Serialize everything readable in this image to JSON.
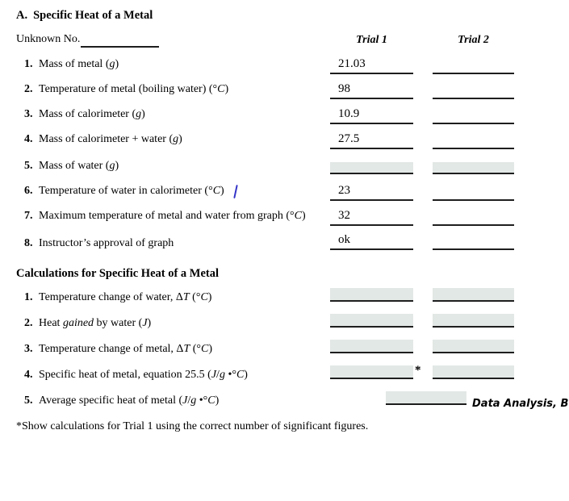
{
  "header": {
    "section_letter": "A.",
    "section_title": "Specific Heat of a Metal",
    "unknown_label": "Unknown No.",
    "trial1": "Trial 1",
    "trial2": "Trial 2"
  },
  "section_a": {
    "rows": [
      {
        "num": "1.",
        "label_parts": [
          {
            "t": "Mass of metal ("
          },
          {
            "t": "g",
            "i": 1
          },
          {
            "t": ")"
          }
        ],
        "trial1": "21.03",
        "trial2": "",
        "field": "line"
      },
      {
        "num": "2.",
        "label_parts": [
          {
            "t": "Temperature of metal (boiling water) (°"
          },
          {
            "t": "C",
            "i": 1
          },
          {
            "t": ")"
          }
        ],
        "trial1": "98",
        "trial2": "",
        "field": "line"
      },
      {
        "num": "3.",
        "label_parts": [
          {
            "t": "Mass of calorimeter ("
          },
          {
            "t": "g",
            "i": 1
          },
          {
            "t": ")"
          }
        ],
        "trial1": "10.9",
        "trial2": "",
        "field": "line"
      },
      {
        "num": "4.",
        "label_parts": [
          {
            "t": "Mass of calorimeter + water ("
          },
          {
            "t": "g",
            "i": 1
          },
          {
            "t": ")"
          }
        ],
        "trial1": "27.5",
        "trial2": "",
        "field": "line"
      },
      {
        "num": "5.",
        "label_parts": [
          {
            "t": "Mass of water ("
          },
          {
            "t": "g",
            "i": 1
          },
          {
            "t": ")"
          }
        ],
        "trial1": "",
        "trial2": "",
        "field": "box"
      },
      {
        "num": "6.",
        "label_parts": [
          {
            "t": "Temperature of water in calorimeter (°"
          },
          {
            "t": "C",
            "i": 1
          },
          {
            "t": ")"
          }
        ],
        "trial1": "23",
        "trial2": "",
        "field": "line",
        "pen_mark": true
      },
      {
        "num": "7.",
        "label_parts": [
          {
            "t": "Maximum temperature of metal and water from graph (°"
          },
          {
            "t": "C",
            "i": 1
          },
          {
            "t": ")"
          }
        ],
        "trial1": "32",
        "trial2": "",
        "field": "line"
      },
      {
        "num": "8.",
        "label_parts": [
          {
            "t": "Instructor’s approval of graph"
          }
        ],
        "trial1": "ok",
        "trial2": "",
        "field": "line"
      }
    ]
  },
  "calc": {
    "title": "Calculations for Specific Heat of a Metal",
    "asterisk": "*",
    "annotation": "Data Analysis, B",
    "rows": [
      {
        "num": "1.",
        "label_parts": [
          {
            "t": "Temperature change of water, Δ"
          },
          {
            "t": "T",
            "i": 1
          },
          {
            "t": " (°"
          },
          {
            "t": "C",
            "i": 1
          },
          {
            "t": ")"
          }
        ],
        "trial1": "",
        "trial2": "",
        "field": "box"
      },
      {
        "num": "2.",
        "label_parts": [
          {
            "t": "Heat "
          },
          {
            "t": "gained",
            "i": 1
          },
          {
            "t": " by water ("
          },
          {
            "t": "J",
            "i": 1
          },
          {
            "t": ")"
          }
        ],
        "trial1": "",
        "trial2": "",
        "field": "box"
      },
      {
        "num": "3.",
        "label_parts": [
          {
            "t": "Temperature change of metal, Δ"
          },
          {
            "t": "T",
            "i": 1
          },
          {
            "t": " (°"
          },
          {
            "t": "C",
            "i": 1
          },
          {
            "t": ")"
          }
        ],
        "trial1": "",
        "trial2": "",
        "field": "box"
      },
      {
        "num": "4.",
        "label_parts": [
          {
            "t": "Specific heat of metal, equation 25.5 ("
          },
          {
            "t": "J",
            "i": 1
          },
          {
            "t": "/"
          },
          {
            "t": "g",
            "i": 1
          },
          {
            "t": " •°"
          },
          {
            "t": "C",
            "i": 1
          },
          {
            "t": ")"
          }
        ],
        "trial1": "",
        "trial2": "",
        "field": "box",
        "has_asterisk": true
      },
      {
        "num": "5.",
        "label_parts": [
          {
            "t": "Average specific heat of metal ("
          },
          {
            "t": "J",
            "i": 1
          },
          {
            "t": "/"
          },
          {
            "t": "g",
            "i": 1
          },
          {
            "t": " •°"
          },
          {
            "t": "C",
            "i": 1
          },
          {
            "t": ")"
          }
        ],
        "average": "",
        "field": "single-box"
      }
    ]
  },
  "footnote": "*Show calculations for Trial 1 using the correct number of significant figures.",
  "colors": {
    "boxfill": "#e2e8e5",
    "line": "#1e1e1e",
    "pen": "#3434c8"
  }
}
